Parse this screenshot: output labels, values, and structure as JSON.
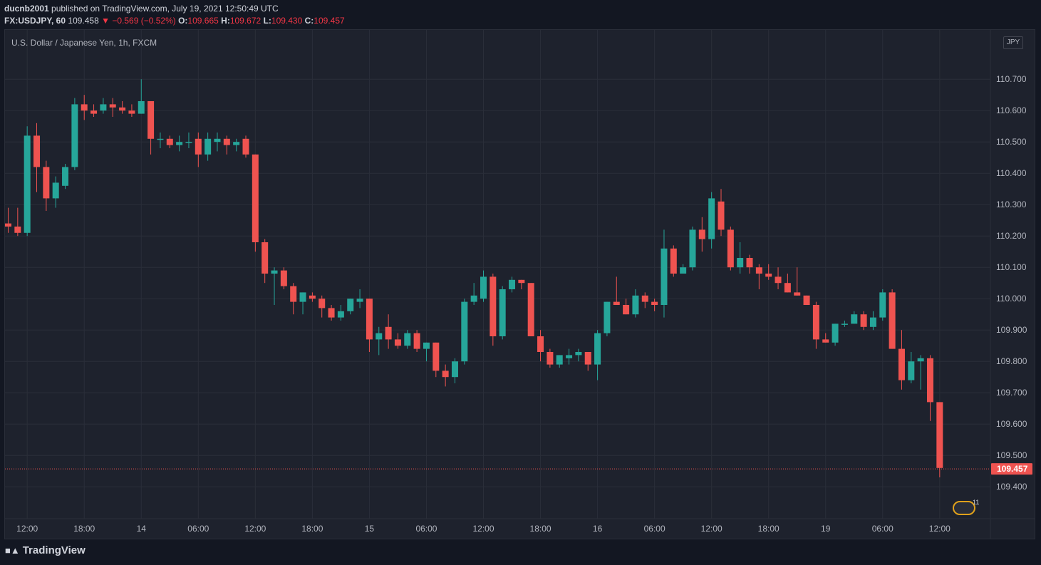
{
  "header": {
    "author": "ducnb2001",
    "published": " published on TradingView.com, July 19, 2021 12:50:49 UTC"
  },
  "quote": {
    "symbol": "FX:USDJPY, 60",
    "last": "109.458",
    "change": "▼ −0.569 (−0.52%)",
    "o_label": "O:",
    "o": "109.665",
    "h_label": "H:",
    "h": "109.672",
    "l_label": "L:",
    "l": "109.430",
    "c_label": "C:",
    "c": "109.457"
  },
  "chart_title": "U.S. Dollar / Japanese Yen, 1h, FXCM",
  "currency_label": "JPY",
  "current_price_label": "109.457",
  "brand": "TradingView",
  "events_count": "11",
  "colors": {
    "up": "#26a69a",
    "down": "#ef5350",
    "background": "#1e222d",
    "grid": "#2a2e39"
  },
  "chart_data": {
    "type": "candlestick",
    "ylim": [
      109.33,
      110.82
    ],
    "y_ticks": [
      "110.700",
      "110.600",
      "110.500",
      "110.400",
      "110.300",
      "110.200",
      "110.100",
      "110.000",
      "109.900",
      "109.800",
      "109.700",
      "109.600",
      "109.500",
      "109.400"
    ],
    "x_ticks": [
      "12:00",
      "18:00",
      "14",
      "06:00",
      "12:00",
      "18:00",
      "15",
      "06:00",
      "12:00",
      "18:00",
      "16",
      "06:00",
      "12:00",
      "18:00",
      "19",
      "06:00",
      "12:00"
    ],
    "x_tick_index": [
      2,
      8,
      14,
      20,
      26,
      32,
      38,
      44,
      50,
      56,
      62,
      68,
      74,
      80,
      86,
      92,
      98
    ],
    "current_price": 109.457,
    "candles": [
      [
        110.24,
        110.29,
        110.21,
        110.23
      ],
      [
        110.23,
        110.29,
        110.2,
        110.21
      ],
      [
        110.21,
        110.55,
        110.2,
        110.52
      ],
      [
        110.52,
        110.56,
        110.34,
        110.42
      ],
      [
        110.42,
        110.44,
        110.28,
        110.32
      ],
      [
        110.32,
        110.39,
        110.29,
        110.37
      ],
      [
        110.36,
        110.43,
        110.35,
        110.42
      ],
      [
        110.42,
        110.64,
        110.41,
        110.62
      ],
      [
        110.62,
        110.65,
        110.57,
        110.6
      ],
      [
        110.6,
        110.62,
        110.58,
        110.59
      ],
      [
        110.6,
        110.64,
        110.59,
        110.62
      ],
      [
        110.62,
        110.64,
        110.58,
        110.61
      ],
      [
        110.61,
        110.63,
        110.59,
        110.6
      ],
      [
        110.6,
        110.62,
        110.58,
        110.59
      ],
      [
        110.59,
        110.7,
        110.59,
        110.63
      ],
      [
        110.63,
        110.63,
        110.46,
        110.51
      ],
      [
        110.51,
        110.53,
        110.48,
        110.51
      ],
      [
        110.51,
        110.52,
        110.48,
        110.49
      ],
      [
        110.49,
        110.52,
        110.47,
        110.5
      ],
      [
        110.5,
        110.53,
        110.48,
        110.5
      ],
      [
        110.51,
        110.53,
        110.42,
        110.46
      ],
      [
        110.46,
        110.53,
        110.44,
        110.51
      ],
      [
        110.5,
        110.53,
        110.47,
        110.51
      ],
      [
        110.51,
        110.52,
        110.46,
        110.49
      ],
      [
        110.49,
        110.51,
        110.47,
        110.5
      ],
      [
        110.51,
        110.52,
        110.45,
        110.46
      ],
      [
        110.46,
        110.46,
        110.15,
        110.18
      ],
      [
        110.18,
        110.19,
        110.05,
        110.08
      ],
      [
        110.08,
        110.1,
        109.98,
        110.09
      ],
      [
        110.09,
        110.1,
        110.03,
        110.04
      ],
      [
        110.04,
        110.05,
        109.95,
        109.99
      ],
      [
        109.99,
        110.02,
        109.95,
        110.02
      ],
      [
        110.01,
        110.02,
        109.99,
        110.0
      ],
      [
        110.0,
        110.01,
        109.94,
        109.97
      ],
      [
        109.97,
        109.98,
        109.93,
        109.94
      ],
      [
        109.94,
        109.98,
        109.93,
        109.96
      ],
      [
        109.96,
        110.0,
        109.95,
        110.0
      ],
      [
        109.99,
        110.03,
        109.97,
        110.0
      ],
      [
        110.0,
        110.0,
        109.83,
        109.87
      ],
      [
        109.87,
        109.91,
        109.82,
        109.89
      ],
      [
        109.91,
        109.95,
        109.84,
        109.87
      ],
      [
        109.87,
        109.89,
        109.84,
        109.85
      ],
      [
        109.85,
        109.9,
        109.84,
        109.89
      ],
      [
        109.89,
        109.9,
        109.83,
        109.84
      ],
      [
        109.84,
        109.86,
        109.8,
        109.86
      ],
      [
        109.86,
        109.86,
        109.75,
        109.77
      ],
      [
        109.77,
        109.79,
        109.72,
        109.75
      ],
      [
        109.75,
        109.81,
        109.73,
        109.8
      ],
      [
        109.8,
        110.0,
        109.79,
        109.99
      ],
      [
        109.99,
        110.05,
        109.98,
        110.01
      ],
      [
        110.0,
        110.09,
        109.99,
        110.07
      ],
      [
        110.07,
        110.08,
        109.85,
        109.88
      ],
      [
        109.88,
        110.04,
        109.87,
        110.03
      ],
      [
        110.03,
        110.07,
        110.02,
        110.06
      ],
      [
        110.06,
        110.06,
        110.03,
        110.05
      ],
      [
        110.05,
        110.05,
        109.88,
        109.88
      ],
      [
        109.88,
        109.9,
        109.8,
        109.83
      ],
      [
        109.83,
        109.84,
        109.78,
        109.79
      ],
      [
        109.79,
        109.82,
        109.78,
        109.82
      ],
      [
        109.81,
        109.84,
        109.79,
        109.82
      ],
      [
        109.82,
        109.84,
        109.8,
        109.83
      ],
      [
        109.83,
        109.83,
        109.77,
        109.79
      ],
      [
        109.79,
        109.9,
        109.74,
        109.89
      ],
      [
        109.89,
        109.99,
        109.88,
        109.99
      ],
      [
        109.99,
        110.07,
        109.98,
        109.98
      ],
      [
        109.98,
        110.0,
        109.95,
        109.95
      ],
      [
        109.95,
        110.03,
        109.94,
        110.01
      ],
      [
        110.01,
        110.02,
        109.97,
        109.99
      ],
      [
        109.99,
        110.0,
        109.96,
        109.98
      ],
      [
        109.98,
        110.22,
        109.94,
        110.16
      ],
      [
        110.16,
        110.17,
        110.07,
        110.08
      ],
      [
        110.08,
        110.11,
        110.08,
        110.1
      ],
      [
        110.1,
        110.23,
        110.09,
        110.22
      ],
      [
        110.22,
        110.26,
        110.15,
        110.19
      ],
      [
        110.19,
        110.34,
        110.16,
        110.32
      ],
      [
        110.31,
        110.35,
        110.2,
        110.22
      ],
      [
        110.22,
        110.23,
        110.09,
        110.1
      ],
      [
        110.1,
        110.18,
        110.08,
        110.13
      ],
      [
        110.13,
        110.14,
        110.08,
        110.1
      ],
      [
        110.1,
        110.11,
        110.03,
        110.08
      ],
      [
        110.08,
        110.11,
        110.06,
        110.07
      ],
      [
        110.07,
        110.1,
        110.03,
        110.05
      ],
      [
        110.05,
        110.08,
        110.02,
        110.02
      ],
      [
        110.02,
        110.1,
        110.01,
        110.01
      ],
      [
        110.01,
        110.01,
        109.98,
        109.98
      ],
      [
        109.98,
        109.99,
        109.84,
        109.87
      ],
      [
        109.87,
        109.89,
        109.86,
        109.86
      ],
      [
        109.86,
        109.92,
        109.85,
        109.92
      ],
      [
        109.92,
        109.93,
        109.91,
        109.92
      ],
      [
        109.92,
        109.96,
        109.92,
        109.95
      ],
      [
        109.95,
        109.96,
        109.9,
        109.91
      ],
      [
        109.91,
        109.96,
        109.9,
        109.94
      ],
      [
        109.94,
        110.03,
        109.93,
        110.02
      ],
      [
        110.02,
        110.03,
        109.84,
        109.84
      ],
      [
        109.84,
        109.9,
        109.71,
        109.74
      ],
      [
        109.74,
        109.83,
        109.73,
        109.8
      ],
      [
        109.8,
        109.82,
        109.71,
        109.81
      ],
      [
        109.81,
        109.82,
        109.61,
        109.67
      ],
      [
        109.67,
        109.67,
        109.43,
        109.46
      ]
    ]
  }
}
